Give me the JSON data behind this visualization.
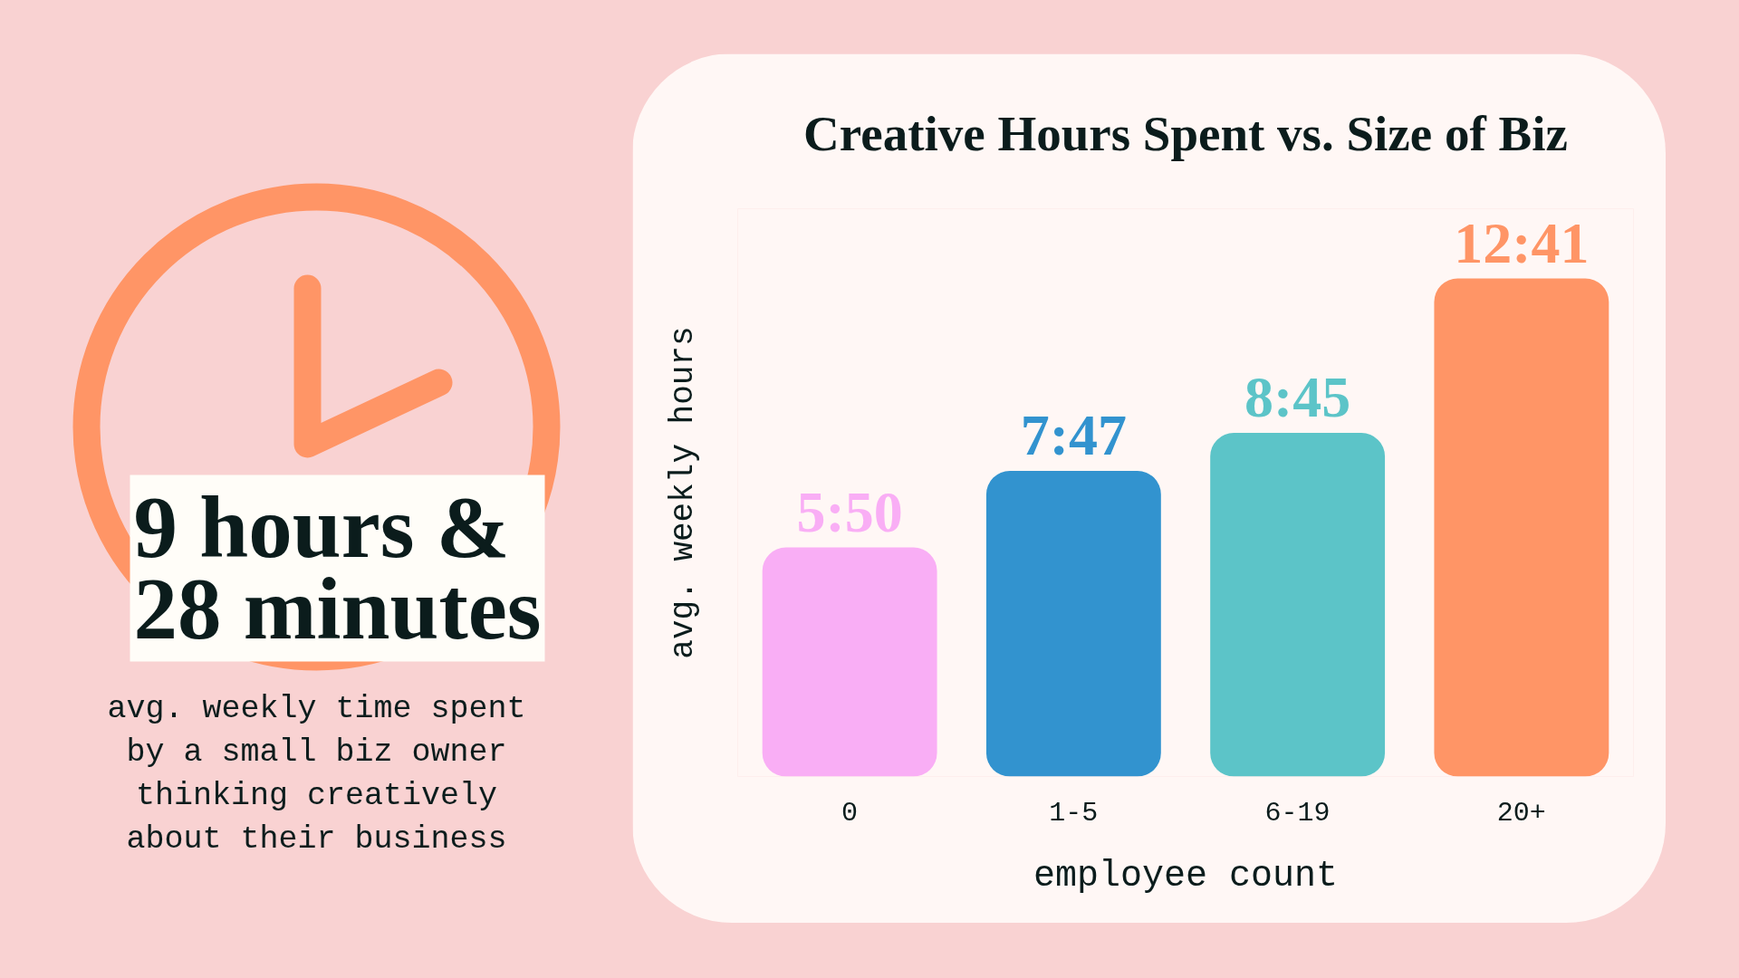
{
  "chart_data": {
    "type": "bar",
    "title": "Creative Hours Spent vs. Size of Biz",
    "xlabel": "employee count",
    "ylabel": "avg. weekly hours",
    "categories": [
      "0",
      "1-5",
      "6-19",
      "20+"
    ],
    "values": [
      5.833,
      7.783,
      8.75,
      12.683
    ],
    "value_labels": [
      "5:50",
      "7:47",
      "8:45",
      "12:41"
    ],
    "colors": [
      "#f9aef5",
      "#3293cf",
      "#5cc4c8",
      "#ff9566"
    ],
    "grid": false,
    "tick_labels": "x",
    "annotations": [
      "9 hours & 28 minutes",
      "avg. weekly time spent by a small biz owner thinking creatively about their business"
    ]
  }
}
